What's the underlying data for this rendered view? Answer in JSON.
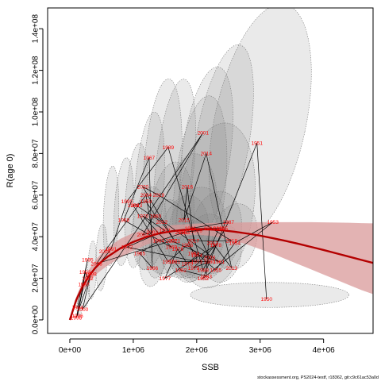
{
  "chart_data": {
    "type": "scatter",
    "xlabel": "SSB",
    "ylabel": "R(age 0)",
    "x_ticks": [
      0,
      1000000,
      2000000,
      3000000,
      4000000
    ],
    "x_tick_labels": [
      "0e+00",
      "1e+06",
      "2e+06",
      "3e+06",
      "4e+06"
    ],
    "y_ticks": [
      0,
      20000000,
      40000000,
      60000000,
      80000000,
      100000000,
      120000000,
      140000000
    ],
    "y_tick_labels": [
      "0.0e+00",
      "2.0e+07",
      "4.0e+07",
      "6.0e+07",
      "8.0e+07",
      "1.0e+08",
      "1.2e+08",
      "1.4e+08"
    ],
    "xlim": [
      -350000,
      4780000
    ],
    "ylim": [
      -6500000,
      150000000
    ],
    "grid": false,
    "colors": {
      "curve": "#b40000",
      "ribbon": "#d99a9a",
      "ellipse_fill": "#7f7f7f",
      "ellipse_stroke": "#7f7f7f",
      "path": "#000000",
      "labels": "#ff0000"
    },
    "stock_recruit_curve": {
      "x": [
        0,
        100000,
        200000,
        300000,
        400000,
        500000,
        600000,
        800000,
        1000000,
        1200000,
        1400000,
        1600000,
        1800000,
        2000000,
        2200000,
        2400000,
        2600000,
        2800000,
        3000000,
        3200000,
        3400000,
        3600000,
        3800000,
        4000000,
        4200000,
        4400000,
        4600000,
        4780000
      ],
      "y": [
        0,
        9500000,
        16000000,
        21000000,
        25000000,
        28000000,
        30500000,
        34500000,
        37500000,
        39800000,
        41500000,
        42600000,
        43300000,
        43600000,
        43500000,
        43100000,
        42400000,
        41500000,
        40500000,
        39300000,
        38000000,
        36600000,
        35100000,
        33600000,
        32000000,
        30400000,
        28800000,
        27400000
      ],
      "upper": [
        0,
        11000000,
        18500000,
        24000000,
        28500000,
        32000000,
        34800000,
        39000000,
        41800000,
        43600000,
        44800000,
        45500000,
        46000000,
        46300000,
        46500000,
        46700000,
        46800000,
        46900000,
        47000000,
        47000000,
        47000000,
        47000000,
        47000000,
        46900000,
        46800000,
        46700000,
        46500000,
        46400000
      ],
      "lower": [
        0,
        8000000,
        13500000,
        18000000,
        21500000,
        24000000,
        26200000,
        30000000,
        33200000,
        36000000,
        38200000,
        39700000,
        40600000,
        40900000,
        40500000,
        39500000,
        38000000,
        36200000,
        34000000,
        31800000,
        29300000,
        26800000,
        24300000,
        21800000,
        19300000,
        16800000,
        14300000,
        12400000
      ]
    },
    "ellipses": [
      {
        "cx": 3000000,
        "cy": 95000000,
        "rx": 720000,
        "ry": 58000000,
        "rot": 12
      },
      {
        "cx": 2400000,
        "cy": 85000000,
        "rx": 420000,
        "ry": 48000000,
        "rot": 10
      },
      {
        "cx": 2150000,
        "cy": 80000000,
        "rx": 380000,
        "ry": 42000000,
        "rot": 8
      },
      {
        "cx": 1650000,
        "cy": 72000000,
        "rx": 300000,
        "ry": 44000000,
        "rot": 6
      },
      {
        "cx": 1450000,
        "cy": 68000000,
        "rx": 300000,
        "ry": 48000000,
        "rot": 4
      },
      {
        "cx": 2050000,
        "cy": 63000000,
        "rx": 400000,
        "ry": 45000000,
        "rot": 6
      },
      {
        "cx": 2300000,
        "cy": 55000000,
        "rx": 600000,
        "ry": 40000000,
        "rot": 8
      },
      {
        "cx": 1250000,
        "cy": 62000000,
        "rx": 230000,
        "ry": 38000000,
        "rot": 4
      },
      {
        "cx": 1050000,
        "cy": 55000000,
        "rx": 180000,
        "ry": 30000000,
        "rot": 3
      },
      {
        "cx": 1900000,
        "cy": 50000000,
        "rx": 420000,
        "ry": 30000000,
        "rot": 5
      },
      {
        "cx": 1600000,
        "cy": 48000000,
        "rx": 350000,
        "ry": 28000000,
        "rot": 5
      },
      {
        "cx": 850000,
        "cy": 52000000,
        "rx": 150000,
        "ry": 26000000,
        "rot": 3
      },
      {
        "cx": 650000,
        "cy": 50000000,
        "rx": 120000,
        "ry": 24000000,
        "rot": 2
      },
      {
        "cx": 2000000,
        "cy": 42000000,
        "rx": 450000,
        "ry": 22000000,
        "rot": 10
      },
      {
        "cx": 2300000,
        "cy": 42000000,
        "rx": 400000,
        "ry": 20000000,
        "rot": 10
      },
      {
        "cx": 1800000,
        "cy": 40000000,
        "rx": 380000,
        "ry": 20000000,
        "rot": 10
      },
      {
        "cx": 1500000,
        "cy": 40000000,
        "rx": 300000,
        "ry": 18000000,
        "rot": 8
      },
      {
        "cx": 1250000,
        "cy": 44000000,
        "rx": 260000,
        "ry": 20000000,
        "rot": 6
      },
      {
        "cx": 2600000,
        "cy": 40000000,
        "rx": 350000,
        "ry": 16000000,
        "rot": 10
      },
      {
        "cx": 2150000,
        "cy": 35000000,
        "rx": 350000,
        "ry": 16000000,
        "rot": 10
      },
      {
        "cx": 1900000,
        "cy": 33000000,
        "rx": 300000,
        "ry": 15000000,
        "rot": 8
      },
      {
        "cx": 2400000,
        "cy": 32000000,
        "rx": 300000,
        "ry": 14000000,
        "rot": 8
      },
      {
        "cx": 1300000,
        "cy": 30000000,
        "rx": 200000,
        "ry": 14000000,
        "rot": 5
      },
      {
        "cx": 3150000,
        "cy": 12000000,
        "rx": 1250000,
        "ry": 6000000,
        "rot": 0
      },
      {
        "cx": 500000,
        "cy": 30000000,
        "rx": 90000,
        "ry": 16000000,
        "rot": 2
      },
      {
        "cx": 350000,
        "cy": 24000000,
        "rx": 70000,
        "ry": 14000000,
        "rot": 2
      },
      {
        "cx": 250000,
        "cy": 14000000,
        "rx": 60000,
        "ry": 8000000,
        "rot": 2
      },
      {
        "cx": 150000,
        "cy": 6000000,
        "rx": 40000,
        "ry": 4000000,
        "rot": 1
      }
    ],
    "points": [
      {
        "year": "1950",
        "x": 3100000,
        "y": 10000000
      },
      {
        "year": "1951",
        "x": 2950000,
        "y": 85000000
      },
      {
        "year": "1952",
        "x": 2100000,
        "y": 20000000
      },
      {
        "year": "1953",
        "x": 3200000,
        "y": 47000000
      },
      {
        "year": "1954",
        "x": 2600000,
        "y": 37000000
      },
      {
        "year": "1955",
        "x": 2300000,
        "y": 24000000
      },
      {
        "year": "1956",
        "x": 1850000,
        "y": 36000000
      },
      {
        "year": "1957",
        "x": 1550000,
        "y": 28000000
      },
      {
        "year": "1958",
        "x": 1000000,
        "y": 55000000
      },
      {
        "year": "1959",
        "x": 1200000,
        "y": 57000000
      },
      {
        "year": "1960",
        "x": 1350000,
        "y": 50000000
      },
      {
        "year": "1961",
        "x": 2350000,
        "y": 28000000
      },
      {
        "year": "1962",
        "x": 1950000,
        "y": 32000000
      },
      {
        "year": "1963",
        "x": 1800000,
        "y": 42000000
      },
      {
        "year": "1964",
        "x": 1400000,
        "y": 38000000
      },
      {
        "year": "1965",
        "x": 1100000,
        "y": 32000000
      },
      {
        "year": "1966",
        "x": 1300000,
        "y": 25000000
      },
      {
        "year": "1967",
        "x": 1250000,
        "y": 78000000
      },
      {
        "year": "1968",
        "x": 850000,
        "y": 48000000
      },
      {
        "year": "1969",
        "x": 1600000,
        "y": 35000000
      },
      {
        "year": "1970",
        "x": 1150000,
        "y": 50000000
      },
      {
        "year": "1971",
        "x": 1500000,
        "y": 43000000
      },
      {
        "year": "1972",
        "x": 900000,
        "y": 35000000
      },
      {
        "year": "1973",
        "x": 2000000,
        "y": 28000000
      },
      {
        "year": "1974",
        "x": 2000000,
        "y": 31000000
      },
      {
        "year": "1975",
        "x": 1850000,
        "y": 27000000
      },
      {
        "year": "1976",
        "x": 1700000,
        "y": 34000000
      },
      {
        "year": "1977",
        "x": 1500000,
        "y": 20000000
      },
      {
        "year": "1978",
        "x": 2300000,
        "y": 36000000
      },
      {
        "year": "1979",
        "x": 1950000,
        "y": 25000000
      },
      {
        "year": "1980",
        "x": 2200000,
        "y": 28000000
      },
      {
        "year": "1981",
        "x": 1650000,
        "y": 28000000
      },
      {
        "year": "1982",
        "x": 1750000,
        "y": 24000000
      },
      {
        "year": "1983",
        "x": 2150000,
        "y": 21000000
      },
      {
        "year": "1984",
        "x": 2200000,
        "y": 44000000
      },
      {
        "year": "1985",
        "x": 2400000,
        "y": 44000000
      },
      {
        "year": "1986",
        "x": 1900000,
        "y": 44000000
      },
      {
        "year": "1987",
        "x": 2500000,
        "y": 47000000
      },
      {
        "year": "1988",
        "x": 2100000,
        "y": 24000000
      },
      {
        "year": "1989",
        "x": 1550000,
        "y": 83000000
      },
      {
        "year": "1990",
        "x": 900000,
        "y": 57000000
      },
      {
        "year": "1991",
        "x": 650000,
        "y": 34000000
      },
      {
        "year": "1992",
        "x": 280000,
        "y": 20000000
      },
      {
        "year": "1993",
        "x": 240000,
        "y": 23000000
      },
      {
        "year": "1994",
        "x": 120000,
        "y": 6000000
      },
      {
        "year": "1995",
        "x": 280000,
        "y": 29000000
      },
      {
        "year": "1996",
        "x": 120000,
        "y": 2000000
      },
      {
        "year": "1997",
        "x": 220000,
        "y": 17000000
      },
      {
        "year": "1998",
        "x": 100000,
        "y": 1000000
      },
      {
        "year": "1999",
        "x": 330000,
        "y": 22000000
      },
      {
        "year": "2000",
        "x": 200000,
        "y": 5000000
      },
      {
        "year": "2001",
        "x": 2100000,
        "y": 90000000
      },
      {
        "year": "2002",
        "x": 1150000,
        "y": 41000000
      },
      {
        "year": "2003",
        "x": 1300000,
        "y": 42000000
      },
      {
        "year": "2004",
        "x": 1200000,
        "y": 60000000
      },
      {
        "year": "2005",
        "x": 550000,
        "y": 33000000
      },
      {
        "year": "2006",
        "x": 420000,
        "y": 27000000
      },
      {
        "year": "2007",
        "x": 1600000,
        "y": 38000000
      },
      {
        "year": "2008",
        "x": 2200000,
        "y": 30000000
      },
      {
        "year": "2009",
        "x": 2000000,
        "y": 43000000
      },
      {
        "year": "2010",
        "x": 1750000,
        "y": 42000000
      },
      {
        "year": "2011",
        "x": 2350000,
        "y": 44000000
      },
      {
        "year": "2012",
        "x": 2250000,
        "y": 37000000
      },
      {
        "year": "2013",
        "x": 2550000,
        "y": 25000000
      },
      {
        "year": "2014",
        "x": 2150000,
        "y": 80000000
      },
      {
        "year": "2015",
        "x": 1800000,
        "y": 48000000
      },
      {
        "year": "2016",
        "x": 1850000,
        "y": 64000000
      },
      {
        "year": "2017",
        "x": 1950000,
        "y": 38000000
      },
      {
        "year": "2018",
        "x": 2550000,
        "y": 38000000
      },
      {
        "year": "2019",
        "x": 1400000,
        "y": 60000000
      },
      {
        "year": "2020",
        "x": 1150000,
        "y": 64000000
      },
      {
        "year": "2021",
        "x": 1650000,
        "y": 38000000
      },
      {
        "year": "2022",
        "x": 1450000,
        "y": 47000000
      },
      {
        "year": "2023",
        "x": 1050000,
        "y": 55000000
      }
    ]
  },
  "footer": {
    "note": "stockassessment.org, PS2024-testf, r18362, git:c9c61ac53a0d"
  }
}
